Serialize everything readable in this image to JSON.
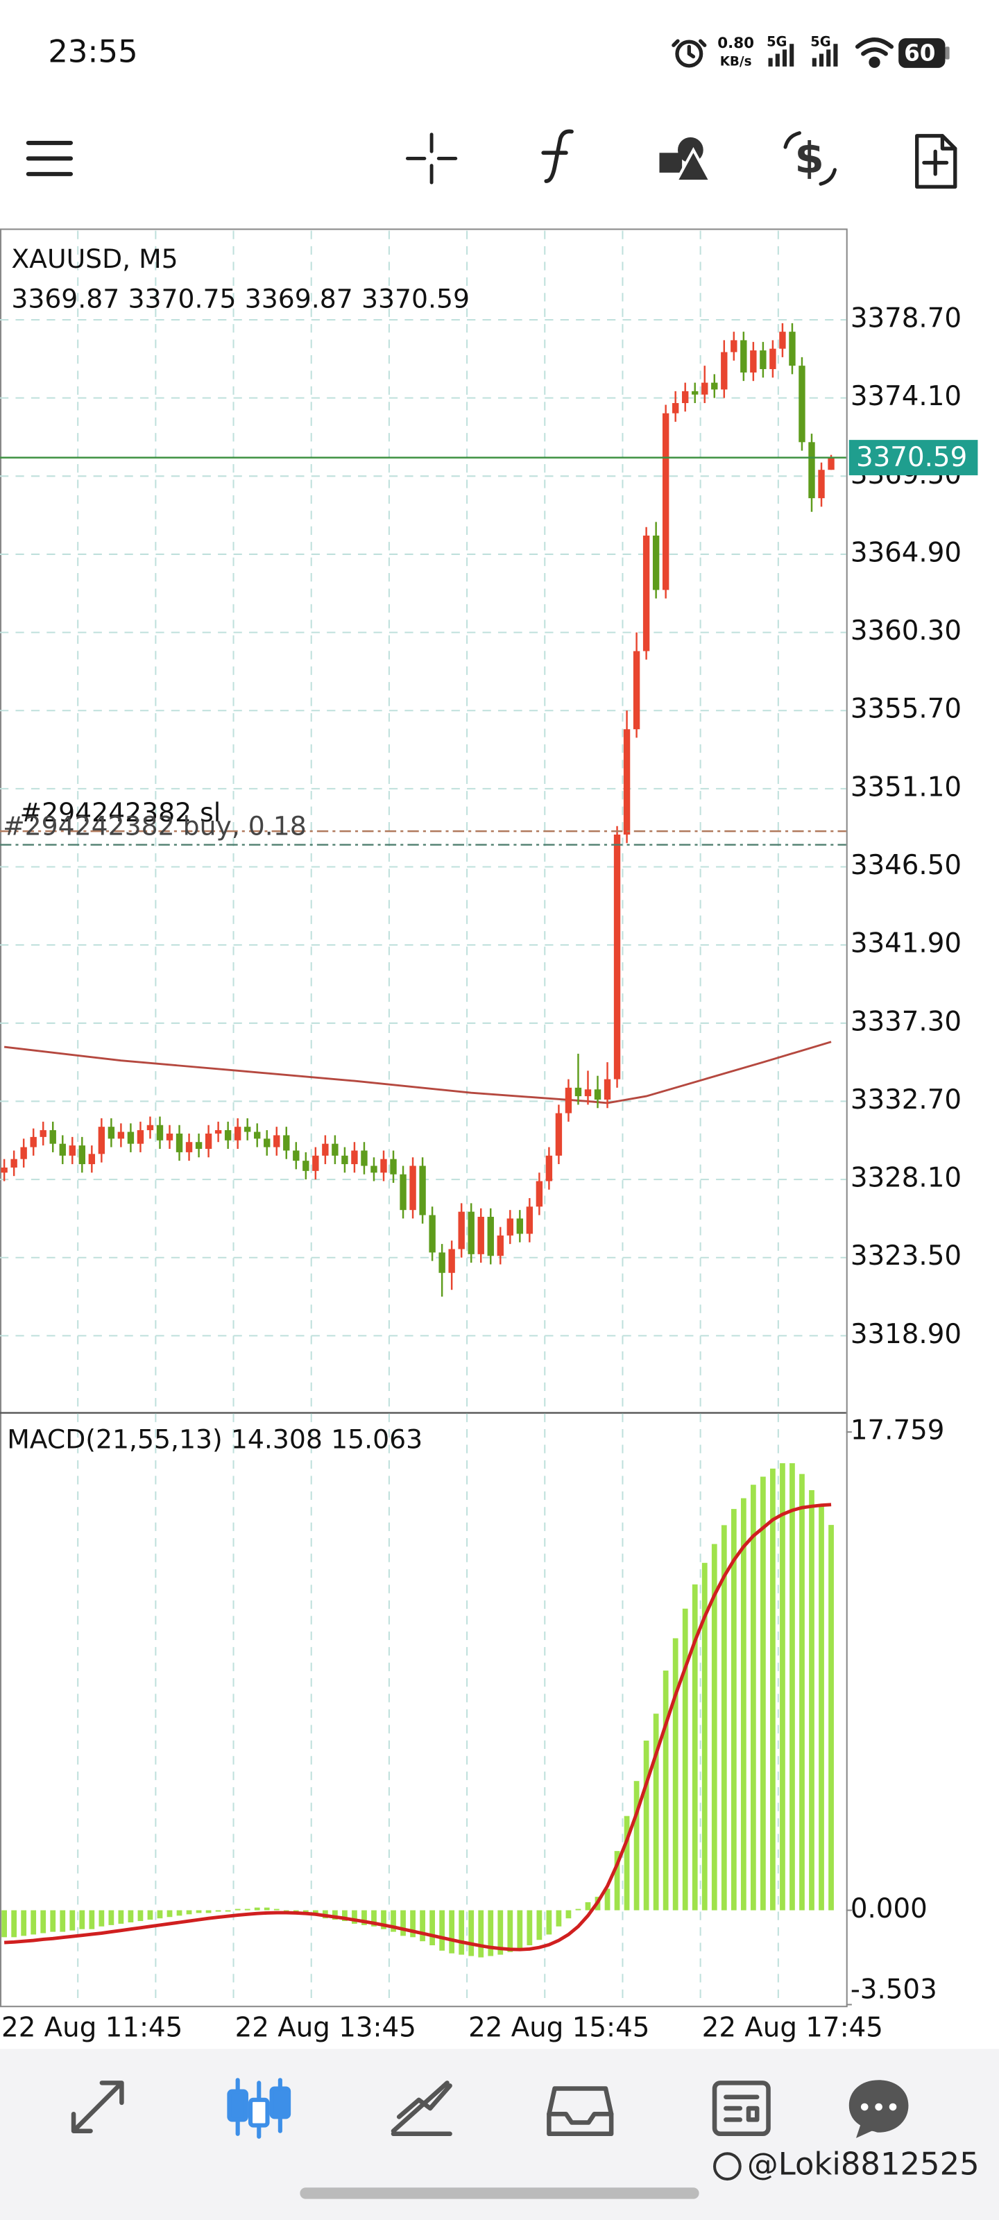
{
  "status_bar": {
    "time": "23:55",
    "net_speed": "0.80",
    "net_unit": "KB/s",
    "sim1": "5G",
    "sim2": "5G",
    "battery": "60"
  },
  "chart_data": [
    {
      "type": "candlestick",
      "title": "XAUUSD, M5",
      "categories": [
        "22 Aug 11:45",
        null,
        null,
        null,
        null,
        null,
        null,
        null,
        null,
        null,
        null,
        null,
        null,
        null,
        null,
        null,
        null,
        null,
        null,
        null,
        null,
        null,
        null,
        null,
        "22 Aug 13:45",
        null,
        null,
        null,
        null,
        null,
        null,
        null,
        null,
        null,
        null,
        null,
        null,
        null,
        null,
        null,
        null,
        null,
        null,
        null,
        null,
        null,
        null,
        null,
        "22 Aug 15:45",
        null,
        null,
        null,
        null,
        null,
        null,
        null,
        null,
        null,
        null,
        null,
        null,
        null,
        null,
        null,
        null,
        null,
        null,
        null,
        null,
        null,
        null,
        null,
        "22 Aug 17:45",
        null,
        null,
        null,
        null,
        null,
        null,
        null,
        null,
        null,
        null,
        null,
        null,
        null
      ],
      "open": [
        3328.5,
        3328.8,
        3329.3,
        3330.0,
        3330.6,
        3331.0,
        3330.2,
        3329.5,
        3330.1,
        3329.0,
        3329.6,
        3331.2,
        3330.5,
        3330.9,
        3330.2,
        3331.0,
        3331.3,
        3330.4,
        3330.8,
        3329.7,
        3330.3,
        3329.9,
        3330.8,
        3331.0,
        3330.4,
        3331.2,
        3330.9,
        3330.5,
        3330.0,
        3330.7,
        3329.8,
        3329.2,
        3328.6,
        3329.5,
        3330.2,
        3329.5,
        3329.0,
        3329.8,
        3328.9,
        3328.5,
        3329.3,
        3328.4,
        3326.3,
        3328.9,
        3326.0,
        3323.8,
        3322.6,
        3324.0,
        3326.2,
        3323.7,
        3325.9,
        3323.6,
        3324.8,
        3325.8,
        3324.9,
        3326.5,
        3328.0,
        3329.5,
        3332.0,
        3333.5,
        3333.0,
        3333.4,
        3332.8,
        3334.0,
        3348.4,
        3354.6,
        3359.2,
        3366.0,
        3362.8,
        3373.2,
        3373.8,
        3374.5,
        3374.3,
        3375.0,
        3374.6,
        3376.8,
        3377.5,
        3375.6,
        3376.9,
        3375.8,
        3377.0,
        3378.0,
        3376.0,
        3371.5,
        3368.2,
        3369.87
      ],
      "high": [
        3329.3,
        3329.8,
        3330.5,
        3331.1,
        3331.5,
        3331.5,
        3330.7,
        3330.6,
        3330.6,
        3330.1,
        3331.7,
        3331.7,
        3331.4,
        3331.4,
        3331.5,
        3331.8,
        3331.8,
        3331.3,
        3331.3,
        3330.8,
        3330.8,
        3331.3,
        3331.5,
        3331.5,
        3331.7,
        3331.7,
        3331.4,
        3331.0,
        3331.2,
        3331.2,
        3330.3,
        3329.7,
        3330.0,
        3330.7,
        3330.7,
        3330.0,
        3330.3,
        3330.3,
        3329.4,
        3329.8,
        3329.8,
        3328.9,
        3329.4,
        3329.4,
        3326.5,
        3324.3,
        3324.5,
        3326.7,
        3326.7,
        3326.4,
        3326.4,
        3325.3,
        3326.3,
        3326.3,
        3327.0,
        3328.5,
        3330.0,
        3332.5,
        3334.0,
        3335.5,
        3334.5,
        3334.2,
        3335.0,
        3348.9,
        3355.7,
        3360.3,
        3366.5,
        3366.8,
        3373.7,
        3374.5,
        3375.0,
        3375.0,
        3376.0,
        3375.5,
        3377.5,
        3378.0,
        3378.0,
        3377.4,
        3377.4,
        3377.5,
        3378.5,
        3378.5,
        3376.5,
        3372.0,
        3370.3,
        3370.75
      ],
      "low": [
        3328.0,
        3328.3,
        3328.8,
        3329.5,
        3330.1,
        3329.7,
        3329.0,
        3329.0,
        3328.5,
        3328.5,
        3329.1,
        3330.0,
        3330.0,
        3329.7,
        3329.7,
        3330.5,
        3329.9,
        3329.9,
        3329.2,
        3329.2,
        3329.4,
        3329.4,
        3330.3,
        3329.9,
        3329.9,
        3330.4,
        3330.0,
        3329.5,
        3329.5,
        3329.3,
        3328.7,
        3328.1,
        3328.1,
        3329.0,
        3329.0,
        3328.5,
        3328.5,
        3328.4,
        3328.0,
        3328.0,
        3327.9,
        3325.8,
        3325.8,
        3325.5,
        3323.3,
        3321.2,
        3321.6,
        3323.5,
        3323.2,
        3323.2,
        3323.1,
        3323.1,
        3324.3,
        3324.4,
        3324.4,
        3326.0,
        3327.5,
        3329.0,
        3331.5,
        3332.5,
        3332.5,
        3332.3,
        3332.3,
        3333.5,
        3347.9,
        3354.1,
        3358.7,
        3362.3,
        3362.3,
        3372.7,
        3373.3,
        3373.8,
        3373.8,
        3374.1,
        3374.1,
        3376.3,
        3375.1,
        3375.1,
        3375.3,
        3375.3,
        3376.5,
        3375.5,
        3371.0,
        3367.4,
        3367.7,
        3369.87
      ],
      "close": [
        3328.8,
        3329.3,
        3330.0,
        3330.6,
        3331.0,
        3330.2,
        3329.5,
        3330.1,
        3329.0,
        3329.6,
        3331.2,
        3330.5,
        3330.9,
        3330.2,
        3331.0,
        3331.3,
        3330.4,
        3330.8,
        3329.7,
        3330.3,
        3329.9,
        3330.8,
        3331.0,
        3330.4,
        3331.2,
        3330.9,
        3330.5,
        3330.0,
        3330.7,
        3329.8,
        3329.2,
        3328.6,
        3329.5,
        3330.2,
        3329.5,
        3329.0,
        3329.8,
        3328.9,
        3328.5,
        3329.3,
        3328.4,
        3326.3,
        3328.9,
        3326.0,
        3323.8,
        3322.6,
        3324.0,
        3326.2,
        3323.7,
        3325.9,
        3323.6,
        3324.8,
        3325.8,
        3324.9,
        3326.5,
        3328.0,
        3329.5,
        3332.0,
        3333.5,
        3333.0,
        3333.4,
        3332.8,
        3334.0,
        3348.4,
        3354.6,
        3359.2,
        3366.0,
        3362.8,
        3373.2,
        3373.8,
        3374.5,
        3374.3,
        3375.0,
        3374.6,
        3376.8,
        3377.5,
        3375.6,
        3376.9,
        3375.8,
        3377.0,
        3378.0,
        3376.0,
        3371.5,
        3368.2,
        3369.87,
        3370.59
      ],
      "up_color": "#e8452f",
      "down_color": "#5e9c1c",
      "ma": {
        "color": "#b5483f",
        "x": [
          0,
          12,
          24,
          36,
          48,
          60,
          62,
          66,
          72,
          78,
          85
        ],
        "values": [
          3335.9,
          3335.1,
          3334.5,
          3333.9,
          3333.2,
          3332.7,
          3332.6,
          3333.0,
          3334.0,
          3335.0,
          3336.2
        ]
      },
      "price_line_color": "#3d9140",
      "price_label_color": "#1f9e8e",
      "orders": [
        {
          "label": "#294242382 sl",
          "value": 3348.6,
          "color": "#b07a5c"
        },
        {
          "label": "#294242382 buy, 0.18",
          "value": 3347.8,
          "color": "#4f7f6f"
        }
      ],
      "ylim": [
        3314.4,
        3383.95
      ],
      "yticks": [
        {
          "value": 3378.7,
          "label": "3378.70"
        },
        {
          "value": 3374.1,
          "label": "3374.10"
        },
        {
          "value": 3369.5,
          "label": "3369.50"
        },
        {
          "value": 3364.9,
          "label": "3364.90"
        },
        {
          "value": 3360.3,
          "label": "3360.30"
        },
        {
          "value": 3355.7,
          "label": "3355.70"
        },
        {
          "value": 3351.1,
          "label": "3351.10"
        },
        {
          "value": 3346.5,
          "label": "3346.50"
        },
        {
          "value": 3341.9,
          "label": "3341.90"
        },
        {
          "value": 3337.3,
          "label": "3337.30"
        },
        {
          "value": 3332.7,
          "label": "3332.70"
        },
        {
          "value": 3328.1,
          "label": "3328.10"
        },
        {
          "value": 3323.5,
          "label": "3323.50"
        },
        {
          "value": 3318.9,
          "label": "3318.90"
        }
      ],
      "grid": true
    },
    {
      "type": "macd",
      "title": "MACD(21,55,13)",
      "histogram": {
        "color": "#9fe24b",
        "values": [
          -1.0,
          -1.0,
          -0.95,
          -0.9,
          -0.85,
          -0.8,
          -0.8,
          -0.75,
          -0.7,
          -0.7,
          -0.6,
          -0.55,
          -0.5,
          -0.45,
          -0.4,
          -0.35,
          -0.3,
          -0.25,
          -0.2,
          -0.15,
          -0.1,
          -0.1,
          -0.05,
          -0.05,
          0.05,
          0.05,
          0.1,
          0.1,
          0.05,
          -0.05,
          -0.1,
          -0.15,
          -0.2,
          -0.3,
          -0.35,
          -0.4,
          -0.5,
          -0.55,
          -0.6,
          -0.7,
          -0.8,
          -0.95,
          -1.0,
          -1.15,
          -1.3,
          -1.5,
          -1.6,
          -1.65,
          -1.7,
          -1.75,
          -1.7,
          -1.65,
          -1.55,
          -1.45,
          -1.3,
          -1.1,
          -0.9,
          -0.6,
          -0.3,
          0.05,
          0.3,
          0.5,
          0.8,
          2.2,
          3.5,
          4.8,
          6.3,
          7.3,
          8.9,
          10.1,
          11.2,
          12.1,
          12.9,
          13.6,
          14.3,
          14.9,
          15.3,
          15.8,
          16.1,
          16.4,
          16.6,
          16.6,
          16.2,
          15.6,
          15.0,
          14.308
        ]
      },
      "signal": {
        "color": "#d01f1f",
        "values": [
          -1.2,
          -1.18,
          -1.15,
          -1.12,
          -1.08,
          -1.05,
          -1.01,
          -0.97,
          -0.93,
          -0.89,
          -0.85,
          -0.8,
          -0.75,
          -0.7,
          -0.65,
          -0.6,
          -0.55,
          -0.5,
          -0.45,
          -0.4,
          -0.35,
          -0.3,
          -0.26,
          -0.22,
          -0.18,
          -0.15,
          -0.12,
          -0.1,
          -0.09,
          -0.09,
          -0.1,
          -0.12,
          -0.15,
          -0.2,
          -0.25,
          -0.3,
          -0.36,
          -0.42,
          -0.48,
          -0.55,
          -0.62,
          -0.7,
          -0.78,
          -0.86,
          -0.94,
          -1.02,
          -1.1,
          -1.18,
          -1.25,
          -1.32,
          -1.38,
          -1.42,
          -1.45,
          -1.46,
          -1.44,
          -1.38,
          -1.28,
          -1.12,
          -0.9,
          -0.6,
          -0.2,
          0.3,
          0.9,
          1.7,
          2.6,
          3.6,
          4.7,
          5.8,
          6.9,
          8.0,
          9.0,
          10.0,
          10.9,
          11.7,
          12.4,
          13.0,
          13.5,
          13.9,
          14.2,
          14.5,
          14.7,
          14.85,
          14.95,
          15.0,
          15.04,
          15.063
        ]
      },
      "ylim": [
        -3.52,
        18.39
      ],
      "yticks": [
        17.759,
        {
          "value": 0,
          "label": "0.000"
        },
        -3.503
      ]
    }
  ],
  "watermark": "@Loki8812525"
}
